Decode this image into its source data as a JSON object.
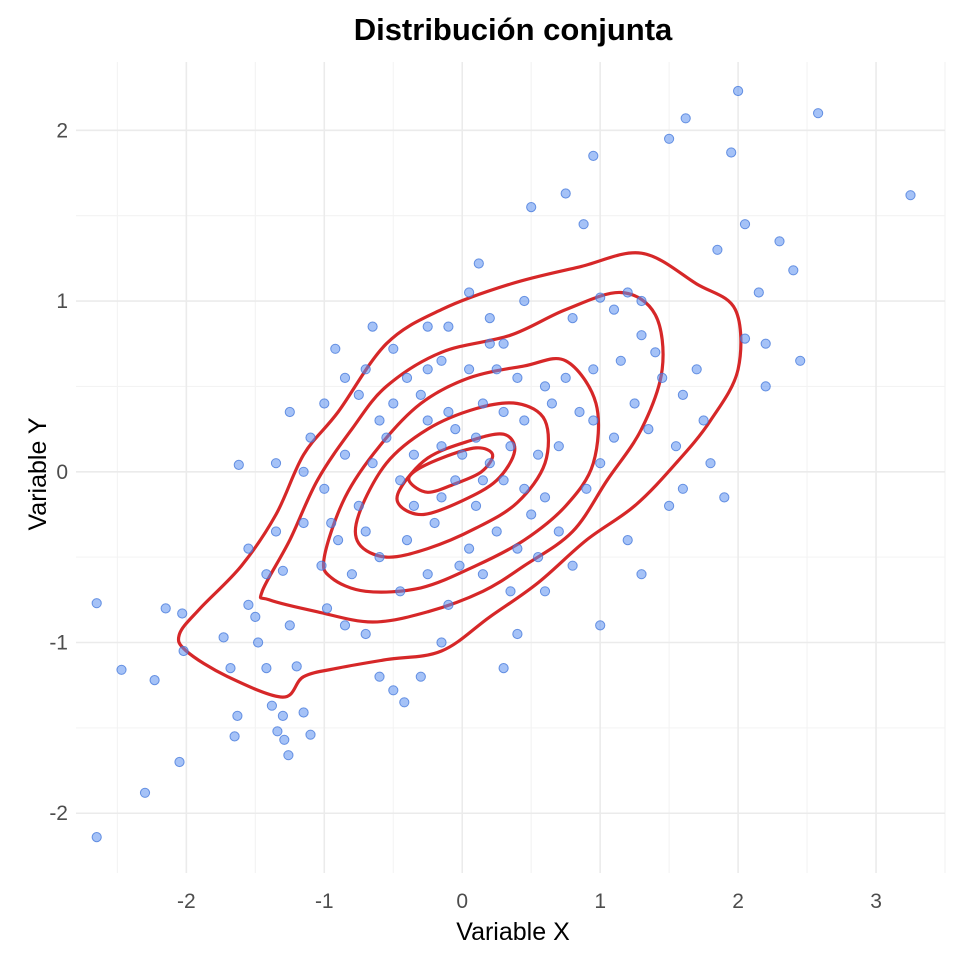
{
  "chart_data": {
    "type": "scatter",
    "title": "Distribución conjunta",
    "xlabel": "Variable X",
    "ylabel": "Variable Y",
    "xlim": [
      -2.8,
      3.5
    ],
    "ylim": [
      -2.35,
      2.4
    ],
    "x_ticks": [
      -2,
      -1,
      0,
      1,
      2,
      3
    ],
    "y_ticks": [
      -2,
      -1,
      0,
      1,
      2
    ],
    "x_tick_labels": [
      "-2",
      "-1",
      "0",
      "1",
      "2",
      "3"
    ],
    "y_tick_labels": [
      "-2",
      "-1",
      "0",
      "1",
      "2"
    ],
    "grid": true,
    "legend": "none",
    "colors": {
      "points": "#5b8ff0",
      "contours": "#d62728"
    },
    "series": [
      {
        "kind": "points",
        "points": [
          [
            -2.65,
            -2.14
          ],
          [
            -2.3,
            -1.88
          ],
          [
            -2.05,
            -1.7
          ],
          [
            -2.47,
            -1.16
          ],
          [
            -2.23,
            -1.22
          ],
          [
            -2.65,
            -0.77
          ],
          [
            -2.15,
            -0.8
          ],
          [
            -2.02,
            -1.05
          ],
          [
            -2.03,
            -0.83
          ],
          [
            -1.73,
            -0.97
          ],
          [
            -1.68,
            -1.15
          ],
          [
            -1.65,
            -1.55
          ],
          [
            -1.63,
            -1.43
          ],
          [
            -1.55,
            -0.78
          ],
          [
            -1.5,
            -0.85
          ],
          [
            -1.48,
            -1.0
          ],
          [
            -1.42,
            -1.15
          ],
          [
            -1.38,
            -1.37
          ],
          [
            -1.34,
            -1.52
          ],
          [
            -1.3,
            -1.43
          ],
          [
            -1.29,
            -1.57
          ],
          [
            -1.26,
            -1.66
          ],
          [
            -1.15,
            -1.41
          ],
          [
            -1.1,
            -1.54
          ],
          [
            -1.2,
            -1.14
          ],
          [
            -1.25,
            -0.9
          ],
          [
            -1.3,
            -0.58
          ],
          [
            -1.42,
            -0.6
          ],
          [
            -1.55,
            -0.45
          ],
          [
            -1.62,
            0.04
          ],
          [
            -1.25,
            0.35
          ],
          [
            -1.1,
            0.2
          ],
          [
            -1.0,
            -0.1
          ],
          [
            -0.95,
            -0.3
          ],
          [
            -1.02,
            -0.55
          ],
          [
            -0.98,
            -0.8
          ],
          [
            -0.85,
            -0.9
          ],
          [
            -0.7,
            -0.95
          ],
          [
            -0.6,
            -1.2
          ],
          [
            -0.5,
            -1.28
          ],
          [
            -0.42,
            -1.35
          ],
          [
            -0.3,
            -1.2
          ],
          [
            -0.15,
            -1.0
          ],
          [
            -0.1,
            -0.78
          ],
          [
            -0.02,
            -0.55
          ],
          [
            -0.92,
            0.72
          ],
          [
            -0.85,
            0.55
          ],
          [
            -0.7,
            0.6
          ],
          [
            -0.65,
            0.85
          ],
          [
            -0.5,
            0.72
          ],
          [
            -0.4,
            0.55
          ],
          [
            -0.25,
            0.6
          ],
          [
            -0.15,
            0.65
          ],
          [
            -0.1,
            0.85
          ],
          [
            0.05,
            1.05
          ],
          [
            0.12,
            1.22
          ],
          [
            0.2,
            0.9
          ],
          [
            0.3,
            0.75
          ],
          [
            0.4,
            0.55
          ],
          [
            0.45,
            1.0
          ],
          [
            0.5,
            1.55
          ],
          [
            0.75,
            1.63
          ],
          [
            0.88,
            1.45
          ],
          [
            0.95,
            1.85
          ],
          [
            1.5,
            1.95
          ],
          [
            1.62,
            2.07
          ],
          [
            1.95,
            1.87
          ],
          [
            2.0,
            2.23
          ],
          [
            2.58,
            2.1
          ],
          [
            3.25,
            1.62
          ],
          [
            1.85,
            1.3
          ],
          [
            2.05,
            1.45
          ],
          [
            2.3,
            1.35
          ],
          [
            2.4,
            1.18
          ],
          [
            2.15,
            1.05
          ],
          [
            2.05,
            0.78
          ],
          [
            2.2,
            0.75
          ],
          [
            2.45,
            0.65
          ],
          [
            2.2,
            0.5
          ],
          [
            1.9,
            -0.15
          ],
          [
            1.8,
            0.05
          ],
          [
            1.6,
            -0.1
          ],
          [
            1.5,
            -0.2
          ],
          [
            1.2,
            -0.4
          ],
          [
            1.3,
            -0.6
          ],
          [
            1.0,
            -0.9
          ],
          [
            0.8,
            -0.55
          ],
          [
            0.6,
            -0.7
          ],
          [
            0.4,
            -0.95
          ],
          [
            0.3,
            -1.15
          ],
          [
            1.0,
            1.02
          ],
          [
            1.1,
            0.95
          ],
          [
            1.2,
            1.05
          ],
          [
            1.3,
            0.8
          ],
          [
            1.4,
            0.7
          ],
          [
            1.45,
            0.55
          ],
          [
            1.6,
            0.45
          ],
          [
            1.7,
            0.6
          ],
          [
            1.75,
            0.3
          ],
          [
            1.55,
            0.15
          ],
          [
            1.35,
            0.25
          ],
          [
            1.25,
            0.4
          ],
          [
            1.1,
            0.2
          ],
          [
            1.0,
            0.05
          ],
          [
            0.9,
            -0.1
          ],
          [
            0.85,
            0.35
          ],
          [
            0.75,
            0.55
          ],
          [
            0.65,
            0.4
          ],
          [
            0.7,
            0.15
          ],
          [
            0.6,
            -0.15
          ],
          [
            0.55,
            0.1
          ],
          [
            0.45,
            0.3
          ],
          [
            0.35,
            0.15
          ],
          [
            0.3,
            -0.05
          ],
          [
            0.2,
            0.05
          ],
          [
            0.1,
            0.2
          ],
          [
            0.0,
            0.1
          ],
          [
            -0.05,
            -0.05
          ],
          [
            -0.15,
            0.15
          ],
          [
            -0.25,
            0.3
          ],
          [
            -0.35,
            0.1
          ],
          [
            -0.45,
            -0.05
          ],
          [
            -0.55,
            0.2
          ],
          [
            -0.65,
            0.05
          ],
          [
            -0.75,
            -0.2
          ],
          [
            -0.85,
            0.1
          ],
          [
            -0.5,
            0.4
          ],
          [
            -0.3,
            0.45
          ],
          [
            -0.1,
            0.35
          ],
          [
            0.15,
            0.4
          ],
          [
            0.25,
            0.6
          ],
          [
            -0.2,
            -0.3
          ],
          [
            -0.4,
            -0.4
          ],
          [
            -0.6,
            -0.5
          ],
          [
            -0.8,
            -0.6
          ],
          [
            0.1,
            -0.2
          ],
          [
            0.25,
            -0.35
          ],
          [
            0.4,
            -0.45
          ],
          [
            0.5,
            -0.25
          ],
          [
            0.15,
            -0.6
          ],
          [
            -0.25,
            -0.6
          ],
          [
            -0.45,
            -0.7
          ],
          [
            -0.7,
            -0.35
          ],
          [
            -0.9,
            -0.4
          ],
          [
            -1.15,
            -0.3
          ],
          [
            -1.35,
            -0.35
          ],
          [
            -1.15,
            0.0
          ],
          [
            -1.35,
            0.05
          ],
          [
            0.05,
            0.6
          ],
          [
            0.15,
            -0.05
          ],
          [
            0.3,
            0.35
          ],
          [
            -0.05,
            0.25
          ],
          [
            0.6,
            0.5
          ],
          [
            0.95,
            0.6
          ],
          [
            1.15,
            0.65
          ],
          [
            0.35,
            -0.7
          ],
          [
            0.55,
            -0.5
          ],
          [
            0.05,
            -0.45
          ],
          [
            -0.15,
            -0.15
          ],
          [
            -0.6,
            0.3
          ],
          [
            0.8,
            0.9
          ],
          [
            0.95,
            0.3
          ],
          [
            0.2,
            0.75
          ],
          [
            -0.25,
            0.85
          ],
          [
            -0.75,
            0.45
          ],
          [
            1.3,
            1.0
          ],
          [
            0.45,
            -0.1
          ],
          [
            -0.35,
            -0.2
          ],
          [
            0.7,
            -0.35
          ],
          [
            -1.0,
            0.4
          ]
        ]
      },
      {
        "kind": "contour",
        "level": 1,
        "path": [
          [
            -1.9,
            -0.8
          ],
          [
            -1.6,
            -0.55
          ],
          [
            -1.35,
            -0.25
          ],
          [
            -1.15,
            0.1
          ],
          [
            -0.9,
            0.35
          ],
          [
            -0.55,
            0.75
          ],
          [
            -0.15,
            0.95
          ],
          [
            0.35,
            1.1
          ],
          [
            0.85,
            1.2
          ],
          [
            1.3,
            1.28
          ],
          [
            1.7,
            1.1
          ],
          [
            1.98,
            0.95
          ],
          [
            2.0,
            0.6
          ],
          [
            1.8,
            0.3
          ],
          [
            1.55,
            0.05
          ],
          [
            1.25,
            -0.2
          ],
          [
            0.9,
            -0.4
          ],
          [
            0.55,
            -0.65
          ],
          [
            0.2,
            -0.85
          ],
          [
            -0.15,
            -1.05
          ],
          [
            -0.55,
            -1.1
          ],
          [
            -0.9,
            -1.15
          ],
          [
            -1.15,
            -1.2
          ],
          [
            -1.3,
            -1.32
          ],
          [
            -1.7,
            -1.2
          ],
          [
            -2.0,
            -1.05
          ],
          [
            -2.05,
            -0.95
          ],
          [
            -1.9,
            -0.8
          ]
        ]
      },
      {
        "kind": "contour",
        "level": 2,
        "path": [
          [
            -1.45,
            -0.7
          ],
          [
            -1.25,
            -0.4
          ],
          [
            -1.05,
            -0.05
          ],
          [
            -0.8,
            0.25
          ],
          [
            -0.55,
            0.5
          ],
          [
            -0.15,
            0.7
          ],
          [
            0.35,
            0.8
          ],
          [
            0.75,
            0.95
          ],
          [
            1.15,
            1.05
          ],
          [
            1.4,
            0.92
          ],
          [
            1.45,
            0.6
          ],
          [
            1.3,
            0.25
          ],
          [
            1.05,
            -0.05
          ],
          [
            0.8,
            -0.35
          ],
          [
            0.45,
            -0.55
          ],
          [
            0.15,
            -0.7
          ],
          [
            -0.25,
            -0.82
          ],
          [
            -0.65,
            -0.88
          ],
          [
            -1.05,
            -0.82
          ],
          [
            -1.4,
            -0.75
          ],
          [
            -1.45,
            -0.7
          ]
        ]
      },
      {
        "kind": "contour",
        "level": 3,
        "path": [
          [
            -1.0,
            -0.5
          ],
          [
            -0.85,
            -0.15
          ],
          [
            -0.6,
            0.15
          ],
          [
            -0.3,
            0.4
          ],
          [
            0.05,
            0.55
          ],
          [
            0.45,
            0.62
          ],
          [
            0.75,
            0.65
          ],
          [
            0.97,
            0.4
          ],
          [
            0.95,
            0.05
          ],
          [
            0.75,
            -0.2
          ],
          [
            0.45,
            -0.4
          ],
          [
            0.1,
            -0.55
          ],
          [
            -0.3,
            -0.68
          ],
          [
            -0.7,
            -0.7
          ],
          [
            -0.95,
            -0.62
          ],
          [
            -1.0,
            -0.5
          ]
        ]
      },
      {
        "kind": "contour",
        "level": 4,
        "path": [
          [
            -0.75,
            -0.25
          ],
          [
            -0.55,
            0.05
          ],
          [
            -0.25,
            0.25
          ],
          [
            0.1,
            0.37
          ],
          [
            0.4,
            0.4
          ],
          [
            0.6,
            0.3
          ],
          [
            0.6,
            0.05
          ],
          [
            0.4,
            -0.18
          ],
          [
            0.1,
            -0.33
          ],
          [
            -0.25,
            -0.45
          ],
          [
            -0.55,
            -0.5
          ],
          [
            -0.75,
            -0.42
          ],
          [
            -0.75,
            -0.25
          ]
        ]
      },
      {
        "kind": "contour",
        "level": 5,
        "path": [
          [
            -0.45,
            -0.1
          ],
          [
            -0.25,
            0.08
          ],
          [
            0.05,
            0.18
          ],
          [
            0.3,
            0.22
          ],
          [
            0.38,
            0.12
          ],
          [
            0.25,
            -0.05
          ],
          [
            0.0,
            -0.17
          ],
          [
            -0.28,
            -0.25
          ],
          [
            -0.45,
            -0.2
          ],
          [
            -0.45,
            -0.1
          ]
        ]
      },
      {
        "kind": "contour",
        "level": 6,
        "path": [
          [
            -0.35,
            0.0
          ],
          [
            -0.15,
            0.08
          ],
          [
            0.1,
            0.14
          ],
          [
            0.22,
            0.1
          ],
          [
            0.14,
            0.0
          ],
          [
            -0.05,
            -0.07
          ],
          [
            -0.25,
            -0.12
          ],
          [
            -0.38,
            -0.06
          ],
          [
            -0.35,
            0.0
          ]
        ]
      }
    ]
  }
}
